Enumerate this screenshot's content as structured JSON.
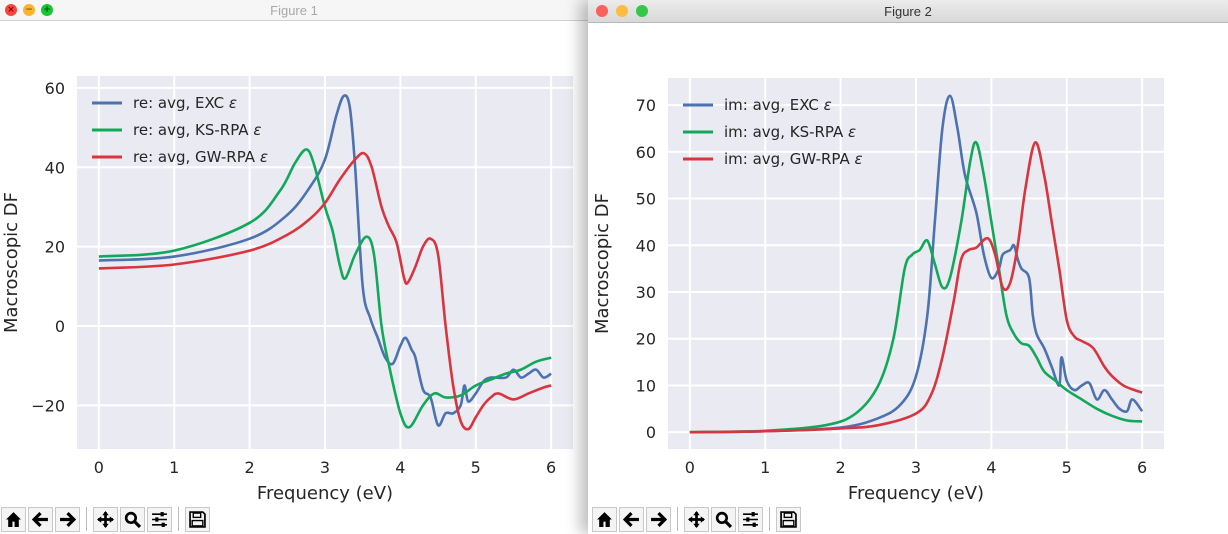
{
  "windows": [
    {
      "title": "Figure 1",
      "active": false,
      "toolbar": [
        "home-icon",
        "back-icon",
        "forward-icon",
        "pan-icon",
        "zoom-icon",
        "configure-subplots-icon",
        "save-icon"
      ]
    },
    {
      "title": "Figure 2",
      "active": true,
      "toolbar": [
        "home-icon",
        "back-icon",
        "forward-icon",
        "pan-icon",
        "zoom-icon",
        "configure-subplots-icon",
        "save-icon"
      ]
    }
  ],
  "colors": {
    "exc": "#4c72b0",
    "ks": "#11a85a",
    "gw": "#d9353f",
    "axes_bg": "#eaeaf2",
    "grid": "#ffffff"
  },
  "chart_data": [
    {
      "type": "line",
      "xlabel": "Frequency (eV)",
      "ylabel": "Macroscopic DF",
      "xlim": [
        -0.29,
        6.29
      ],
      "ylim": [
        -31,
        63
      ],
      "xticks": [
        0,
        1,
        2,
        3,
        4,
        5,
        6
      ],
      "xtick_labels": [
        "0",
        "1",
        "2",
        "3",
        "4",
        "5",
        "6"
      ],
      "yticks": [
        -20,
        0,
        20,
        40,
        60
      ],
      "ytick_labels": [
        "−20",
        "0",
        "20",
        "40",
        "60"
      ],
      "grid": true,
      "legend_placement": "top-left",
      "series": [
        {
          "name": "re: avg, EXC ",
          "symbol": "ε",
          "color": "#4c72b0",
          "x": [
            0,
            1,
            2,
            2.5,
            2.8,
            3.0,
            3.15,
            3.25,
            3.33,
            3.4,
            3.5,
            3.6,
            3.7,
            3.8,
            3.9,
            4.0,
            4.07,
            4.15,
            4.2,
            4.3,
            4.4,
            4.5,
            4.6,
            4.7,
            4.8,
            4.85,
            4.9,
            5.0,
            5.1,
            5.2,
            5.4,
            5.5,
            5.6,
            5.7,
            5.8,
            5.9,
            6.0
          ],
          "y": [
            16.5,
            17.5,
            22,
            28,
            35,
            42,
            53,
            58,
            55,
            40,
            10,
            2,
            -3,
            -8,
            -9.5,
            -5,
            -3,
            -6,
            -8,
            -16,
            -18,
            -25,
            -22,
            -22,
            -20,
            -15,
            -19,
            -17,
            -14,
            -13,
            -13,
            -11,
            -13,
            -12,
            -11,
            -13,
            -12
          ]
        },
        {
          "name": "re: avg, KS-RPA ",
          "symbol": "ε",
          "color": "#11a85a",
          "x": [
            0,
            1,
            2,
            2.4,
            2.6,
            2.75,
            2.85,
            3.0,
            3.1,
            3.2,
            3.27,
            3.4,
            3.55,
            3.65,
            3.75,
            3.85,
            4.0,
            4.12,
            4.3,
            4.45,
            4.6,
            4.8,
            5.0,
            5.2,
            5.4,
            5.6,
            5.8,
            6.0
          ],
          "y": [
            17.5,
            19,
            26,
            34,
            41,
            44.5,
            41,
            30,
            24,
            15,
            12,
            18,
            22.5,
            18,
            0,
            -10,
            -22,
            -25.5,
            -20,
            -17,
            -18,
            -17.5,
            -15,
            -13.5,
            -12,
            -11,
            -9,
            -8
          ]
        },
        {
          "name": "re: avg, GW-RPA ",
          "symbol": "ε",
          "color": "#d9353f",
          "x": [
            0,
            1,
            2,
            2.5,
            2.8,
            3.0,
            3.2,
            3.4,
            3.52,
            3.62,
            3.75,
            3.85,
            3.95,
            4.05,
            4.1,
            4.2,
            4.3,
            4.4,
            4.5,
            4.6,
            4.7,
            4.8,
            4.9,
            5.0,
            5.1,
            5.2,
            5.3,
            5.5,
            5.7,
            5.9,
            6.0
          ],
          "y": [
            14.5,
            15.5,
            19,
            23,
            27,
            31,
            37,
            42,
            43.5,
            40,
            30,
            25,
            21,
            12,
            11,
            15,
            20,
            22,
            18,
            0,
            -15,
            -24,
            -26,
            -23,
            -20,
            -18,
            -17,
            -18.5,
            -17,
            -15.5,
            -15
          ]
        }
      ]
    },
    {
      "type": "line",
      "xlabel": "Frequency (eV)",
      "ylabel": "Macroscopic DF",
      "xlim": [
        -0.29,
        6.29
      ],
      "ylim": [
        -3.6,
        75.8
      ],
      "xticks": [
        0,
        1,
        2,
        3,
        4,
        5,
        6
      ],
      "xtick_labels": [
        "0",
        "1",
        "2",
        "3",
        "4",
        "5",
        "6"
      ],
      "yticks": [
        0,
        10,
        20,
        30,
        40,
        50,
        60,
        70
      ],
      "ytick_labels": [
        "0",
        "10",
        "20",
        "30",
        "40",
        "50",
        "60",
        "70"
      ],
      "grid": true,
      "legend_placement": "top-left",
      "series": [
        {
          "name": "im: avg, EXC ",
          "symbol": "ε",
          "color": "#4c72b0",
          "x": [
            0,
            1,
            2,
            2.5,
            2.8,
            3.0,
            3.15,
            3.25,
            3.35,
            3.45,
            3.55,
            3.65,
            3.8,
            3.9,
            4.0,
            4.1,
            4.15,
            4.25,
            4.3,
            4.35,
            4.4,
            4.5,
            4.55,
            4.6,
            4.7,
            4.8,
            4.9,
            4.93,
            5.0,
            5.1,
            5.2,
            5.3,
            5.4,
            5.5,
            5.6,
            5.7,
            5.8,
            5.87,
            6.0
          ],
          "y": [
            0,
            0.2,
            1,
            3,
            6,
            12,
            25,
            45,
            65,
            72,
            65,
            55,
            47,
            38,
            33,
            35,
            38,
            39,
            40,
            37,
            35,
            33,
            25,
            21,
            18,
            14,
            10,
            16,
            11,
            9,
            10,
            10.5,
            7,
            9,
            7,
            5,
            4.5,
            7,
            4.5
          ]
        },
        {
          "name": "im: avg, KS-RPA ",
          "symbol": "ε",
          "color": "#11a85a",
          "x": [
            0,
            1,
            1.8,
            2.2,
            2.5,
            2.7,
            2.85,
            2.95,
            3.05,
            3.15,
            3.25,
            3.35,
            3.45,
            3.6,
            3.72,
            3.8,
            3.9,
            4.0,
            4.1,
            4.2,
            4.3,
            4.4,
            4.5,
            4.6,
            4.7,
            4.85,
            5.0,
            5.2,
            5.4,
            5.6,
            5.8,
            6.0
          ],
          "y": [
            0,
            0.3,
            1.5,
            4,
            10,
            20,
            35,
            38,
            39,
            41,
            36,
            31,
            33,
            45,
            58,
            62,
            55,
            45,
            35,
            25,
            21,
            19,
            18.5,
            16,
            13,
            11,
            9,
            7,
            5,
            3.5,
            2.5,
            2.3
          ]
        },
        {
          "name": "im: avg, GW-RPA ",
          "symbol": "ε",
          "color": "#d9353f",
          "x": [
            0,
            1,
            2,
            2.5,
            3.0,
            3.2,
            3.35,
            3.5,
            3.6,
            3.7,
            3.8,
            3.95,
            4.05,
            4.15,
            4.25,
            4.35,
            4.45,
            4.58,
            4.7,
            4.8,
            4.9,
            5.0,
            5.1,
            5.2,
            5.35,
            5.5,
            5.6,
            5.75,
            5.9,
            6.0
          ],
          "y": [
            0,
            0.2,
            0.8,
            1.5,
            4,
            8,
            16,
            28,
            37,
            39,
            39.5,
            41.5,
            38,
            31,
            32,
            40,
            52,
            62,
            55,
            45,
            35,
            24,
            20.5,
            19.5,
            18,
            14,
            12,
            10,
            9,
            8.5
          ]
        }
      ]
    }
  ]
}
